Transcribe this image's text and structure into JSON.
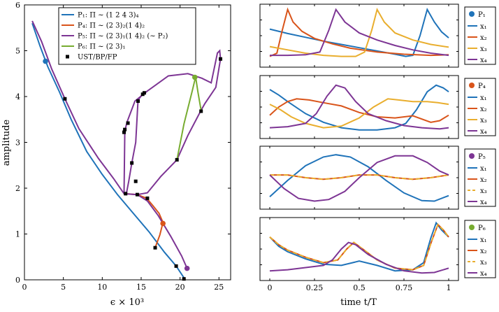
{
  "colors": {
    "blue": "#1f73b9",
    "orange": "#d9541a",
    "yellow": "#e9ae2e",
    "purple": "#7d3594",
    "green": "#77ac30",
    "black": "#000000"
  },
  "chart_data": [
    {
      "type": "line",
      "xlabel": "ϵ × 10³",
      "ylabel": "amplitude",
      "xlim": [
        0,
        26.5
      ],
      "ylim": [
        0,
        6
      ],
      "xticks": [
        0,
        5,
        10,
        15,
        20,
        25
      ],
      "yticks": [
        0,
        1,
        2,
        3,
        4,
        5,
        6
      ],
      "legend_position": "top",
      "series": [
        {
          "name": "P₁: Π ∼ (1 2 4 3)₄",
          "color": "#1f73b9",
          "x": [
            1.0,
            2.0,
            3.0,
            4.5,
            6.0,
            8.0,
            10.0,
            12.0,
            14.0,
            16.0,
            18.0,
            19.5,
            20.6
          ],
          "y": [
            5.6,
            5.1,
            4.65,
            4.1,
            3.5,
            2.8,
            2.3,
            1.85,
            1.45,
            1.05,
            0.6,
            0.3,
            0.02
          ],
          "marker": {
            "x": 2.7,
            "y": 4.77
          }
        },
        {
          "name": "P₄: Π ∼ (2 3)₂(1 4)₂",
          "color": "#d9541a",
          "x": [
            13.0,
            14.5,
            15.7,
            16.5,
            17.3,
            17.8,
            17.4,
            16.8
          ],
          "y": [
            1.88,
            1.86,
            1.78,
            1.62,
            1.45,
            1.25,
            0.98,
            0.7
          ],
          "marker": {
            "x": 17.8,
            "y": 1.23
          }
        },
        {
          "name": "P₅: Π ∼ (2 3)₁(1 4)₂ (∼ P₂)",
          "color": "#7d3594",
          "x": [
            1.0,
            2.2,
            3.5,
            5.2,
            7.0,
            9.5,
            11.5,
            12.8,
            14.5,
            15.8,
            17.2,
            18.8,
            20.2,
            20.9
          ],
          "y": [
            5.65,
            5.2,
            4.6,
            3.95,
            3.3,
            2.65,
            2.2,
            1.88,
            1.86,
            1.72,
            1.4,
            0.95,
            0.52,
            0.25
          ],
          "marker": {
            "x": 20.9,
            "y": 0.25
          }
        },
        {
          "name": "P₆: Π ∼ (2 3)₁",
          "color": "#77ac30",
          "x": [
            19.6,
            20.5,
            21.6,
            22.0,
            22.3,
            22.7
          ],
          "y": [
            2.62,
            3.4,
            4.15,
            4.43,
            4.1,
            3.7
          ],
          "marker": {
            "x": 21.9,
            "y": 4.42
          }
        },
        {
          "name": "UST/BP/FP",
          "color": "#000000",
          "kind": "markers",
          "x": [
            5.2,
            13.0,
            14.5,
            15.8,
            16.8,
            19.5,
            20.5,
            12.8,
            12.9,
            13.3,
            13.8,
            14.3,
            14.6,
            15.2,
            15.4,
            19.6,
            22.7,
            25.2
          ],
          "y": [
            3.95,
            1.88,
            1.86,
            1.78,
            0.7,
            0.3,
            0.02,
            3.22,
            3.28,
            3.42,
            2.55,
            2.15,
            3.9,
            4.05,
            4.08,
            2.62,
            3.68,
            4.82
          ]
        }
      ],
      "loops": [
        {
          "color": "#7d3594",
          "x": [
            12.8,
            12.9,
            13.2,
            14.2,
            15.8,
            18.5,
            21.0,
            22.8,
            24.0,
            24.8,
            25.1,
            25.2,
            24.6,
            24.0,
            23.2,
            22.7,
            21.0,
            19.6,
            17.5,
            15.8,
            14.5
          ],
          "y": [
            1.9,
            3.25,
            3.45,
            3.9,
            4.12,
            4.45,
            4.5,
            4.4,
            4.3,
            4.95,
            5.0,
            4.82,
            4.2,
            4.05,
            3.85,
            3.7,
            3.15,
            2.62,
            2.25,
            1.9,
            1.86
          ]
        },
        {
          "color": "#7d3594",
          "x": [
            15.3,
            14.6,
            14.3,
            13.8,
            13.4,
            13.1
          ],
          "y": [
            4.08,
            3.92,
            3.0,
            2.55,
            2.15,
            1.88
          ]
        }
      ]
    },
    {
      "type": "line",
      "panel": "P₁",
      "legend_title": "P₁",
      "xlim": [
        0,
        1
      ],
      "series": [
        {
          "name": "x₁",
          "color": "#1f73b9",
          "x": [
            0.0,
            0.1,
            0.2,
            0.3,
            0.4,
            0.5,
            0.6,
            0.7,
            0.76,
            0.8,
            0.84,
            0.88,
            0.92,
            0.96,
            1.0
          ],
          "y": [
            0.62,
            0.54,
            0.47,
            0.4,
            0.34,
            0.28,
            0.22,
            0.16,
            0.12,
            0.14,
            0.5,
            0.98,
            0.75,
            0.57,
            0.46
          ]
        },
        {
          "name": "x₂",
          "color": "#d9541a",
          "x": [
            0.0,
            0.04,
            0.07,
            0.1,
            0.13,
            0.18,
            0.25,
            0.35,
            0.45,
            0.6,
            0.75,
            0.9,
            1.0
          ],
          "y": [
            0.12,
            0.18,
            0.6,
            0.98,
            0.75,
            0.58,
            0.45,
            0.35,
            0.27,
            0.2,
            0.16,
            0.14,
            0.15
          ]
        },
        {
          "name": "x₃",
          "color": "#e9ae2e",
          "x": [
            0.0,
            0.1,
            0.2,
            0.3,
            0.4,
            0.48,
            0.53,
            0.57,
            0.6,
            0.64,
            0.7,
            0.8,
            0.9,
            1.0
          ],
          "y": [
            0.3,
            0.24,
            0.18,
            0.14,
            0.12,
            0.12,
            0.2,
            0.6,
            0.98,
            0.75,
            0.55,
            0.42,
            0.34,
            0.29
          ]
        },
        {
          "name": "x₄",
          "color": "#7d3594",
          "x": [
            0.0,
            0.1,
            0.2,
            0.28,
            0.33,
            0.37,
            0.42,
            0.5,
            0.6,
            0.7,
            0.8,
            0.9,
            1.0
          ],
          "y": [
            0.14,
            0.14,
            0.15,
            0.2,
            0.6,
            0.98,
            0.75,
            0.55,
            0.42,
            0.32,
            0.24,
            0.18,
            0.14
          ]
        }
      ]
    },
    {
      "type": "line",
      "panel": "P₄",
      "legend_title": "P₄",
      "xlim": [
        0,
        1
      ],
      "series": [
        {
          "name": "x₁",
          "color": "#1f73b9",
          "x": [
            0.0,
            0.05,
            0.1,
            0.2,
            0.3,
            0.4,
            0.5,
            0.6,
            0.7,
            0.76,
            0.82,
            0.88,
            0.93,
            0.97,
            1.0
          ],
          "y": [
            0.82,
            0.72,
            0.6,
            0.38,
            0.22,
            0.12,
            0.08,
            0.08,
            0.12,
            0.2,
            0.45,
            0.78,
            0.9,
            0.85,
            0.78
          ]
        },
        {
          "name": "x₂",
          "color": "#d9541a",
          "x": [
            0.0,
            0.05,
            0.1,
            0.15,
            0.22,
            0.3,
            0.4,
            0.5,
            0.6,
            0.7,
            0.8,
            0.9,
            0.95,
            1.0
          ],
          "y": [
            0.35,
            0.5,
            0.6,
            0.65,
            0.63,
            0.58,
            0.52,
            0.4,
            0.32,
            0.3,
            0.34,
            0.22,
            0.25,
            0.35
          ]
        },
        {
          "name": "x₃",
          "color": "#e9ae2e",
          "x": [
            0.0,
            0.06,
            0.12,
            0.2,
            0.3,
            0.4,
            0.5,
            0.58,
            0.66,
            0.72,
            0.8,
            0.88,
            0.94,
            1.0
          ],
          "y": [
            0.55,
            0.45,
            0.32,
            0.2,
            0.12,
            0.15,
            0.3,
            0.5,
            0.65,
            0.63,
            0.6,
            0.6,
            0.58,
            0.55
          ]
        },
        {
          "name": "x₄",
          "color": "#7d3594",
          "x": [
            0.0,
            0.1,
            0.2,
            0.26,
            0.32,
            0.37,
            0.42,
            0.48,
            0.55,
            0.65,
            0.75,
            0.85,
            0.95,
            1.0
          ],
          "y": [
            0.12,
            0.14,
            0.2,
            0.38,
            0.7,
            0.9,
            0.85,
            0.6,
            0.38,
            0.25,
            0.16,
            0.12,
            0.1,
            0.12
          ]
        }
      ]
    },
    {
      "type": "line",
      "panel": "P₅",
      "legend_title": "P₅",
      "xlim": [
        0,
        1
      ],
      "series": [
        {
          "name": "x₁",
          "color": "#1f73b9",
          "x": [
            0.0,
            0.1,
            0.2,
            0.3,
            0.37,
            0.45,
            0.55,
            0.65,
            0.75,
            0.85,
            0.92,
            1.0
          ],
          "y": [
            0.15,
            0.45,
            0.72,
            0.88,
            0.92,
            0.88,
            0.7,
            0.45,
            0.22,
            0.08,
            0.07,
            0.17
          ]
        },
        {
          "name": "x₂",
          "color": "#d9541a",
          "x": [
            0.0,
            0.1,
            0.2,
            0.3,
            0.4,
            0.5,
            0.6,
            0.7,
            0.8,
            0.9,
            1.0
          ],
          "y": [
            0.55,
            0.55,
            0.5,
            0.47,
            0.5,
            0.55,
            0.55,
            0.5,
            0.47,
            0.5,
            0.55
          ]
        },
        {
          "name": "x₃",
          "color": "#e9ae2e",
          "dashed": true,
          "x": [
            0.0,
            0.1,
            0.2,
            0.3,
            0.4,
            0.5,
            0.6,
            0.7,
            0.8,
            0.9,
            1.0
          ],
          "y": [
            0.55,
            0.55,
            0.5,
            0.47,
            0.5,
            0.55,
            0.55,
            0.5,
            0.47,
            0.5,
            0.55
          ]
        },
        {
          "name": "x₄",
          "color": "#7d3594",
          "x": [
            0.0,
            0.08,
            0.16,
            0.25,
            0.33,
            0.42,
            0.5,
            0.6,
            0.7,
            0.8,
            0.88,
            0.95,
            1.0
          ],
          "y": [
            0.55,
            0.3,
            0.12,
            0.07,
            0.1,
            0.25,
            0.5,
            0.78,
            0.9,
            0.9,
            0.78,
            0.62,
            0.55
          ]
        }
      ]
    },
    {
      "type": "line",
      "panel": "P₆",
      "legend_title": "P₆",
      "xlabel": "time t/T",
      "xlim": [
        0,
        1
      ],
      "xticks": [
        0,
        0.25,
        0.5,
        0.75,
        1
      ],
      "xticklabels": [
        "0",
        "0.25",
        "0.5",
        "0.75",
        "1"
      ],
      "series": [
        {
          "name": "x₁",
          "color": "#1f73b9",
          "x": [
            0.0,
            0.05,
            0.1,
            0.2,
            0.3,
            0.4,
            0.5,
            0.6,
            0.7,
            0.8,
            0.86,
            0.9,
            0.93,
            0.96,
            1.0
          ],
          "y": [
            0.72,
            0.55,
            0.45,
            0.32,
            0.22,
            0.2,
            0.28,
            0.2,
            0.1,
            0.12,
            0.25,
            0.7,
            0.98,
            0.85,
            0.72
          ]
        },
        {
          "name": "x₂",
          "color": "#d9541a",
          "x": [
            0.0,
            0.05,
            0.1,
            0.2,
            0.3,
            0.38,
            0.43,
            0.47,
            0.52,
            0.6,
            0.7,
            0.8,
            0.86,
            0.9,
            0.94,
            0.97,
            1.0
          ],
          "y": [
            0.72,
            0.58,
            0.48,
            0.35,
            0.25,
            0.3,
            0.5,
            0.62,
            0.5,
            0.3,
            0.15,
            0.12,
            0.2,
            0.6,
            0.95,
            0.85,
            0.72
          ]
        },
        {
          "name": "x₃",
          "color": "#e9ae2e",
          "dashed": true,
          "x": [
            0.0,
            0.05,
            0.1,
            0.2,
            0.3,
            0.38,
            0.43,
            0.47,
            0.52,
            0.6,
            0.7,
            0.8,
            0.86,
            0.9,
            0.94,
            0.97,
            1.0
          ],
          "y": [
            0.72,
            0.58,
            0.48,
            0.35,
            0.25,
            0.3,
            0.5,
            0.62,
            0.5,
            0.3,
            0.15,
            0.12,
            0.2,
            0.6,
            0.95,
            0.85,
            0.72
          ]
        },
        {
          "name": "x₄",
          "color": "#7d3594",
          "x": [
            0.0,
            0.1,
            0.2,
            0.3,
            0.35,
            0.4,
            0.44,
            0.48,
            0.55,
            0.65,
            0.75,
            0.85,
            0.92,
            1.0
          ],
          "y": [
            0.1,
            0.12,
            0.16,
            0.2,
            0.3,
            0.5,
            0.62,
            0.58,
            0.4,
            0.22,
            0.1,
            0.06,
            0.07,
            0.15
          ]
        }
      ]
    }
  ]
}
